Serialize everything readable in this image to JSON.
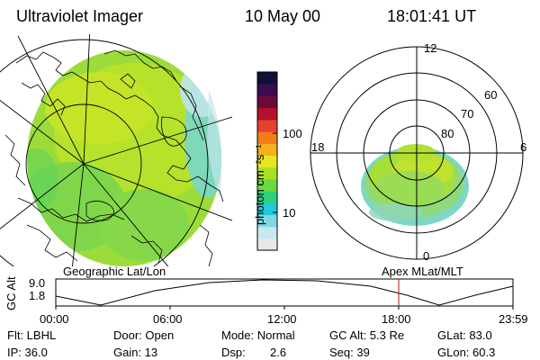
{
  "header": {
    "instrument": "Ultraviolet Imager",
    "date": "10 May 00",
    "time": "18:01:41 UT"
  },
  "colorbar": {
    "unit_label": "photon cm⁻²s⁻¹",
    "ticks": [
      {
        "label": "100",
        "value": 100
      },
      {
        "label": "10",
        "value": 10
      }
    ],
    "colors": [
      "#e8e8e8",
      "#c6e8ef",
      "#7fd7e6",
      "#22c9d6",
      "#2ad27a",
      "#6bd841",
      "#a8e025",
      "#e8e622",
      "#f2b01c",
      "#f07d16",
      "#e6412c",
      "#b4122b",
      "#6b0a3a",
      "#3a0d52",
      "#111138"
    ]
  },
  "polar_plot": {
    "hour_labels": [
      "12",
      "18",
      "6",
      "0"
    ],
    "lat_labels": [
      "60",
      "70",
      "80"
    ]
  },
  "panel_labels": {
    "left": "Geographic Lat/Lon",
    "right": "Apex MLat/MLT"
  },
  "altitude_plot": {
    "axis_label": "GC Alt",
    "y_ticks": [
      "9.0",
      "1.8"
    ],
    "x_ticks": [
      "00:00",
      "06:00",
      "12:00",
      "18:00",
      "23:59"
    ],
    "current_time_marker": "18:01",
    "marker_color": "#c0392b"
  },
  "info": {
    "filter": "Flt: LBHL",
    "ip": "IP: 36.0",
    "door": "Door: Open",
    "gain": "Gain: 13",
    "mode": "Mode: Normal",
    "dsp_label": "Dsp:",
    "dsp_value": "2.6",
    "gc_alt": "GC Alt: 5.3 Re",
    "seq": "Seq: 39",
    "glat": "GLat: 83.0",
    "glon": "GLon: 60.3"
  }
}
